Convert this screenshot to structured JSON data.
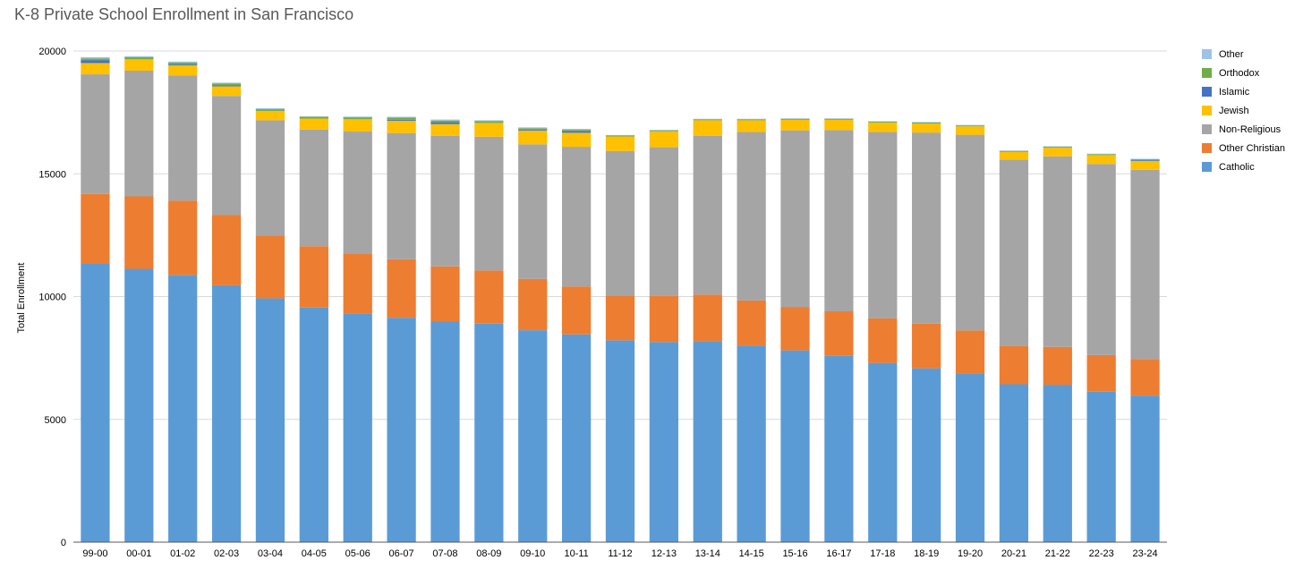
{
  "chart_data": {
    "type": "bar",
    "stacked": true,
    "title": "K-8 Private School Enrollment in San Francisco",
    "ylabel": "Total Enrollment",
    "xlabel": "",
    "ylim": [
      0,
      20000
    ],
    "yticks": [
      0,
      5000,
      10000,
      15000,
      20000
    ],
    "grid": true,
    "legend_position": "right",
    "categories": [
      "99-00",
      "00-01",
      "01-02",
      "02-03",
      "03-04",
      "04-05",
      "05-06",
      "06-07",
      "07-08",
      "08-09",
      "09-10",
      "10-11",
      "11-12",
      "12-13",
      "13-14",
      "14-15",
      "15-16",
      "16-17",
      "17-18",
      "18-19",
      "19-20",
      "20-21",
      "21-22",
      "22-23",
      "23-24"
    ],
    "series": [
      {
        "name": "Catholic",
        "color": "#5B9BD5",
        "values": [
          11330,
          11130,
          10880,
          10460,
          9930,
          9550,
          9320,
          9140,
          8980,
          8900,
          8630,
          8460,
          8220,
          8150,
          8190,
          8010,
          7810,
          7590,
          7300,
          7080,
          6880,
          6430,
          6410,
          6130,
          5970
        ]
      },
      {
        "name": "Other Christian",
        "color": "#ED7D31",
        "values": [
          2850,
          2950,
          3030,
          2870,
          2560,
          2500,
          2440,
          2380,
          2250,
          2160,
          2090,
          1950,
          1820,
          1870,
          1890,
          1830,
          1770,
          1810,
          1810,
          1820,
          1740,
          1550,
          1540,
          1490,
          1490
        ]
      },
      {
        "name": "Non-Religious",
        "color": "#A5A5A5",
        "values": [
          4870,
          5120,
          5090,
          4840,
          4690,
          4750,
          4960,
          5140,
          5320,
          5450,
          5480,
          5690,
          5890,
          6060,
          6470,
          6860,
          7190,
          7380,
          7590,
          7780,
          7970,
          7600,
          7760,
          7780,
          7700
        ]
      },
      {
        "name": "Jewish",
        "color": "#FFC000",
        "values": [
          460,
          460,
          410,
          390,
          380,
          450,
          500,
          500,
          470,
          560,
          560,
          570,
          590,
          650,
          630,
          480,
          430,
          420,
          380,
          370,
          340,
          310,
          350,
          360,
          360
        ]
      },
      {
        "name": "Islamic",
        "color": "#4472C4",
        "values": [
          120,
          0,
          40,
          40,
          0,
          0,
          0,
          40,
          80,
          0,
          40,
          80,
          0,
          0,
          0,
          0,
          0,
          0,
          0,
          0,
          0,
          0,
          0,
          0,
          30
        ]
      },
      {
        "name": "Orthodox",
        "color": "#70AD47",
        "values": [
          70,
          90,
          80,
          70,
          70,
          70,
          80,
          90,
          70,
          70,
          50,
          40,
          40,
          40,
          40,
          40,
          40,
          40,
          40,
          40,
          40,
          40,
          40,
          40,
          40
        ]
      },
      {
        "name": "Other",
        "color": "#9DC3E6",
        "values": [
          50,
          40,
          40,
          40,
          40,
          20,
          30,
          30,
          40,
          40,
          40,
          40,
          20,
          20,
          20,
          20,
          20,
          20,
          20,
          20,
          20,
          20,
          20,
          20,
          20
        ]
      }
    ]
  }
}
